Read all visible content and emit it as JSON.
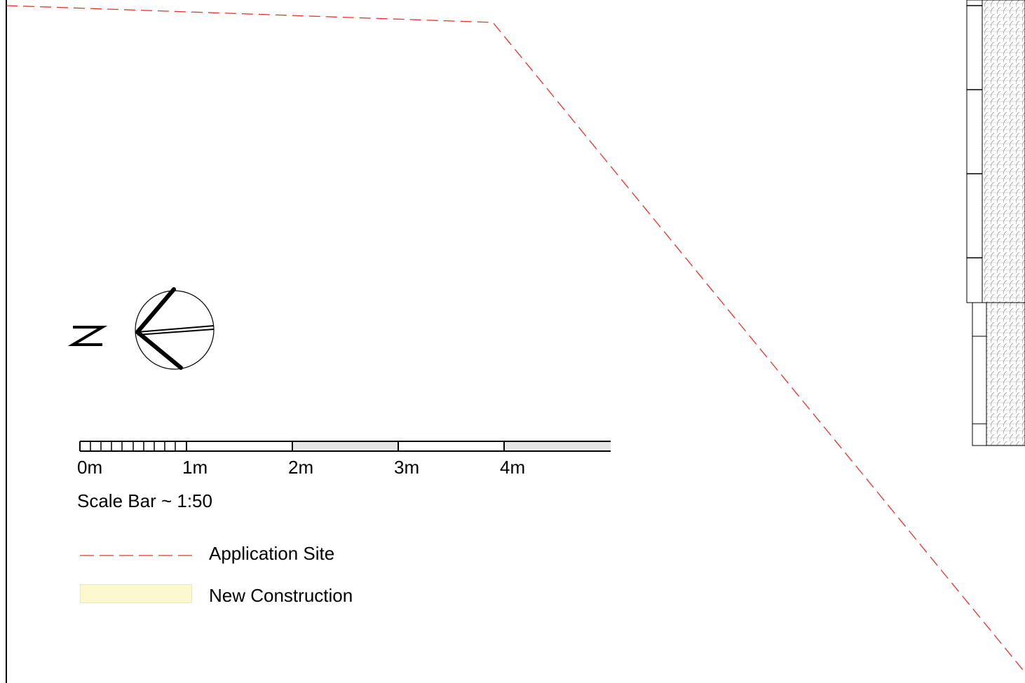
{
  "north_arrow": {
    "letter": "N"
  },
  "scale_bar": {
    "ticks": [
      "0m",
      "1m",
      "2m",
      "3m",
      "4m"
    ],
    "caption": "Scale Bar ~ 1:50"
  },
  "legend": {
    "items": [
      {
        "label": "Application Site",
        "symbol": "dashed-line",
        "color": "#e8322b"
      },
      {
        "label": "New Construction",
        "symbol": "filled-box",
        "color": "#fcfacc"
      }
    ]
  },
  "colors": {
    "boundary": "#e8322b",
    "scale_fill": "#e6e6e6",
    "line": "#000000"
  }
}
